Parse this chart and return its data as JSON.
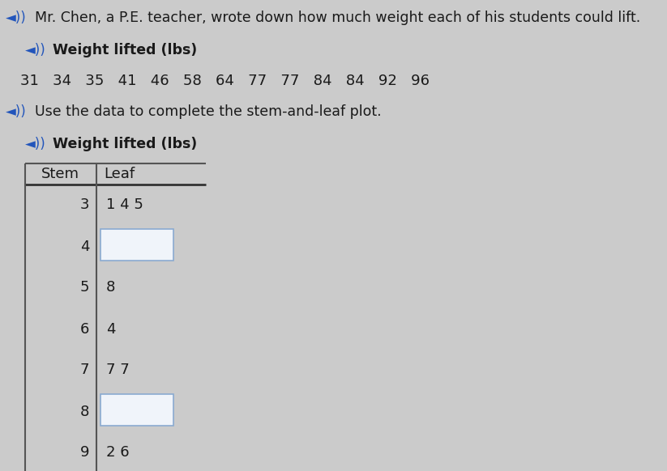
{
  "title_text": "Mr. Chen, a P.E. teacher, wrote down how much weight each of his students could lift.",
  "weight_label": "Weight lifted (lbs)",
  "data_values": "31   34   35   41   46   58   64   77   77   84   84   92   96",
  "instruction": "Use the data to complete the stem-and-leaf plot.",
  "plot_title": "Weight lifted (lbs)",
  "stems": [
    "3",
    "4",
    "5",
    "6",
    "7",
    "8",
    "9"
  ],
  "leaves": [
    "1 4 5",
    "",
    "8",
    "4",
    "7 7",
    "",
    "2 6"
  ],
  "blank_rows": [
    1,
    5
  ],
  "col_header_stem": "Stem",
  "col_header_leaf": "Leaf",
  "bg_color": "#cbcbcb",
  "box_fill": "#f0f4fa",
  "box_border": "#8aaad0",
  "text_color": "#1a1a1a",
  "speaker_color": "#2255bb",
  "title_fontsize": 12.5,
  "label_fontsize": 12.5,
  "data_fontsize": 13,
  "stem_leaf_fontsize": 13,
  "header_fontsize": 13
}
